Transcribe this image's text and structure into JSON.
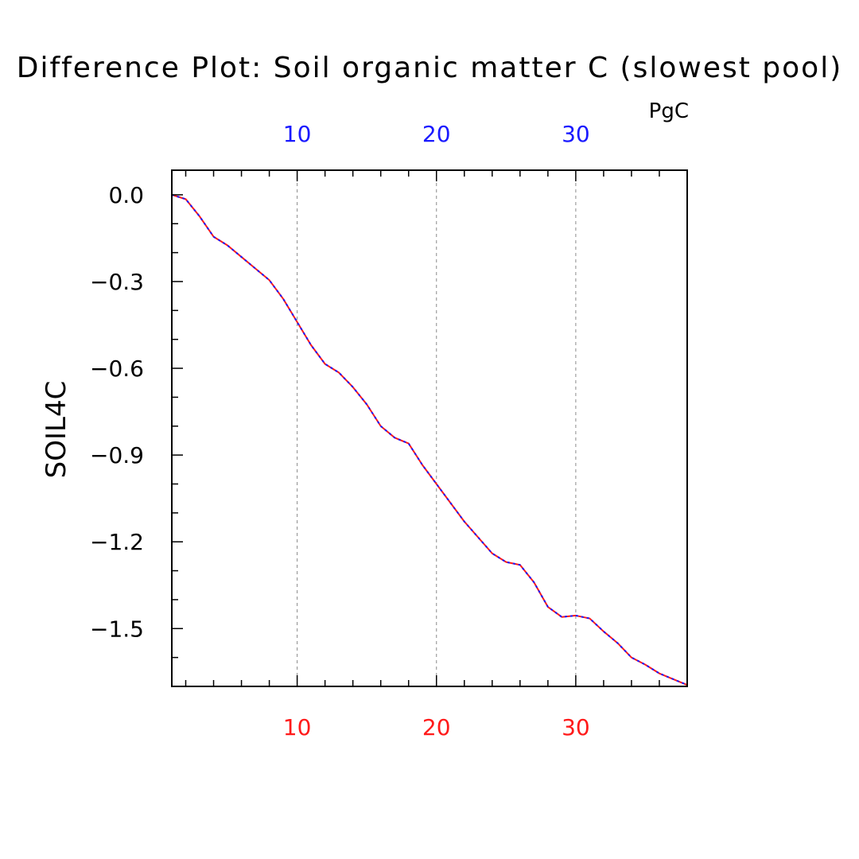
{
  "chart_data": {
    "type": "line",
    "title": "Difference Plot: Soil organic matter C (slowest pool)",
    "units": "PgC",
    "ylabel": "SOIL4C",
    "xlabel": "",
    "xlim": [
      1,
      38
    ],
    "ylim": [
      -1.7,
      0.085
    ],
    "x_ticks": [
      10,
      20,
      30
    ],
    "x_tick_labels_top": [
      "10",
      "20",
      "30"
    ],
    "x_tick_labels_bottom": [
      "10",
      "20",
      "30"
    ],
    "y_ticks": [
      0.0,
      -0.3,
      -0.6,
      -0.9,
      -1.2,
      -1.5
    ],
    "y_tick_labels": [
      "0.0",
      "−0.3",
      "−0.6",
      "−0.9",
      "−1.2",
      "−1.5"
    ],
    "grid": "vertical-dashed",
    "colors": {
      "series_solid": "#ff1a1a",
      "series_dashed": "#1a1aff",
      "top_ticks": "#1a1aff",
      "bottom_ticks": "#ff1a1a"
    },
    "x": [
      1,
      2,
      3,
      4,
      5,
      6,
      7,
      8,
      9,
      10,
      11,
      12,
      13,
      14,
      15,
      16,
      17,
      18,
      19,
      20,
      21,
      22,
      23,
      24,
      25,
      26,
      27,
      28,
      29,
      30,
      31,
      32,
      33,
      34,
      35,
      36,
      37,
      38
    ],
    "series": [
      {
        "values": [
          0.0,
          -0.015,
          -0.075,
          -0.145,
          -0.175,
          -0.215,
          -0.255,
          -0.295,
          -0.36,
          -0.44,
          -0.52,
          -0.585,
          -0.615,
          -0.665,
          -0.725,
          -0.8,
          -0.84,
          -0.86,
          -0.935,
          -1.0,
          -1.065,
          -1.13,
          -1.185,
          -1.24,
          -1.27,
          -1.28,
          -1.34,
          -1.425,
          -1.46,
          -1.455,
          -1.465,
          -1.51,
          -1.55,
          -1.6,
          -1.625,
          -1.655,
          -1.675,
          -1.695
        ]
      },
      {
        "values": [
          0.0,
          -0.015,
          -0.075,
          -0.145,
          -0.175,
          -0.215,
          -0.255,
          -0.295,
          -0.36,
          -0.44,
          -0.52,
          -0.585,
          -0.615,
          -0.665,
          -0.725,
          -0.8,
          -0.84,
          -0.86,
          -0.935,
          -1.0,
          -1.065,
          -1.13,
          -1.185,
          -1.24,
          -1.27,
          -1.28,
          -1.34,
          -1.425,
          -1.46,
          -1.455,
          -1.465,
          -1.51,
          -1.55,
          -1.6,
          -1.625,
          -1.655,
          -1.675,
          -1.695
        ]
      }
    ]
  }
}
